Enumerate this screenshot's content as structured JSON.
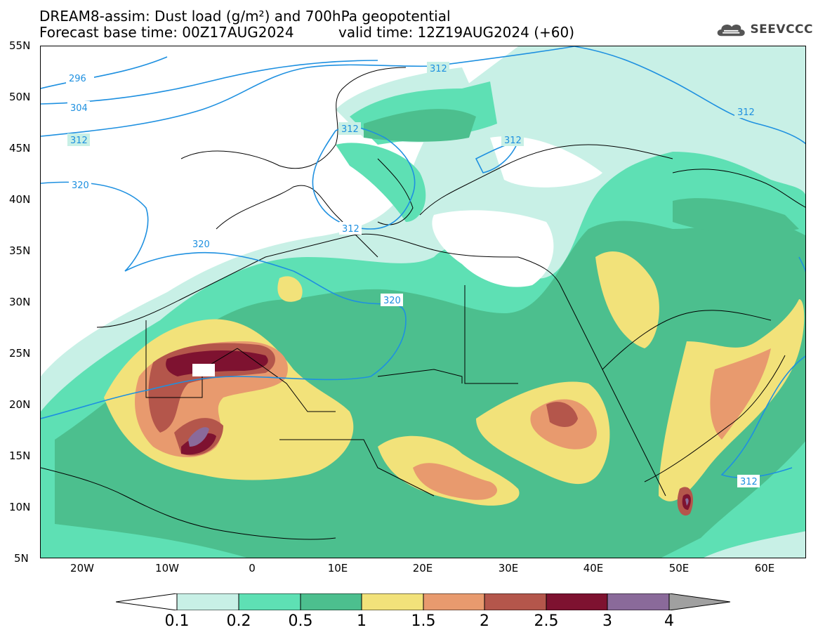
{
  "title": {
    "line1": "DREAM8-assim: Dust load (g/m²) and 700hPa geopotential",
    "line2_left": "Forecast base time: 00Z17AUG2024",
    "line2_right": "valid time: 12Z19AUG2024 (+60)"
  },
  "logo": {
    "text": "SEEVCCC",
    "icon": "cloud-icon"
  },
  "axes": {
    "y_ticks": [
      "55N",
      "50N",
      "45N",
      "40N",
      "35N",
      "30N",
      "25N",
      "20N",
      "15N",
      "10N",
      "5N"
    ],
    "x_ticks": [
      "20W",
      "10W",
      "0",
      "10E",
      "20E",
      "30E",
      "40E",
      "50E",
      "60E"
    ]
  },
  "contour_labels": [
    "296",
    "304",
    "312",
    "320",
    "312",
    "312",
    "320",
    "312",
    "320",
    "312",
    "312",
    "312"
  ],
  "colorbar": {
    "ticks": [
      "0.1",
      "0.2",
      "0.5",
      "1",
      "1.5",
      "2",
      "2.5",
      "3",
      "4"
    ],
    "colors": [
      "#c8f0e6",
      "#5ee0b4",
      "#4cbf8e",
      "#f2e27a",
      "#e89a6e",
      "#b4564b",
      "#7e1230",
      "#8a6a9a",
      "#a0a0a0"
    ]
  }
}
